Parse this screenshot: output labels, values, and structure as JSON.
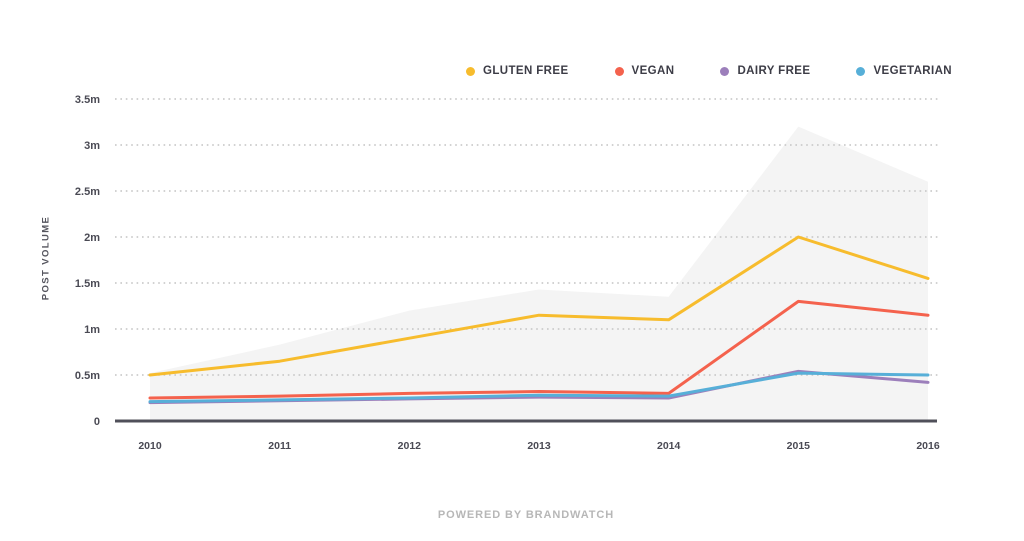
{
  "chart_data": {
    "type": "line",
    "title": "",
    "x_categories": [
      "2010",
      "2011",
      "2012",
      "2013",
      "2014",
      "2015",
      "2016"
    ],
    "series": [
      {
        "name": "GLUTEN FREE",
        "color": "#F7BC2D",
        "values": [
          0.5,
          0.65,
          0.9,
          1.15,
          1.1,
          2.0,
          1.55
        ]
      },
      {
        "name": "VEGAN",
        "color": "#F4624D",
        "values": [
          0.25,
          0.27,
          0.3,
          0.32,
          0.3,
          1.3,
          1.15
        ]
      },
      {
        "name": "DAIRY FREE",
        "color": "#9C7FBB",
        "values": [
          0.2,
          0.22,
          0.24,
          0.26,
          0.25,
          0.54,
          0.42
        ]
      },
      {
        "name": "VEGETARIAN",
        "color": "#57AFD8",
        "values": [
          0.21,
          0.23,
          0.25,
          0.28,
          0.27,
          0.52,
          0.5
        ]
      }
    ],
    "background_area": {
      "name": "total-volume-shaded-area",
      "color": "#F4F4F4",
      "values": [
        0.52,
        0.83,
        1.2,
        1.43,
        1.35,
        3.2,
        2.6
      ]
    },
    "ylabel": "POST VOLUME",
    "value_unit": "m",
    "ylim": [
      0,
      3.5
    ],
    "y_ticks": [
      {
        "label": "0",
        "value": 0
      },
      {
        "label": "0.5m",
        "value": 0.5
      },
      {
        "label": "1m",
        "value": 1
      },
      {
        "label": "1.5m",
        "value": 1.5
      },
      {
        "label": "2m",
        "value": 2
      },
      {
        "label": "2.5m",
        "value": 2.5
      },
      {
        "label": "3m",
        "value": 3
      },
      {
        "label": "3.5m",
        "value": 3.5
      }
    ],
    "grid": "horizontal-dotted",
    "legend_position": "top-right"
  },
  "footer": {
    "text": "POWERED BY BRANDWATCH"
  },
  "colors": {
    "background": "#FFFFFF",
    "axis_text": "#4A4A54",
    "grid_dots": "#C3C3C3",
    "baseline": "#50505A",
    "legend_text": "#3C3C46",
    "footer_text": "#B7B7B7"
  }
}
